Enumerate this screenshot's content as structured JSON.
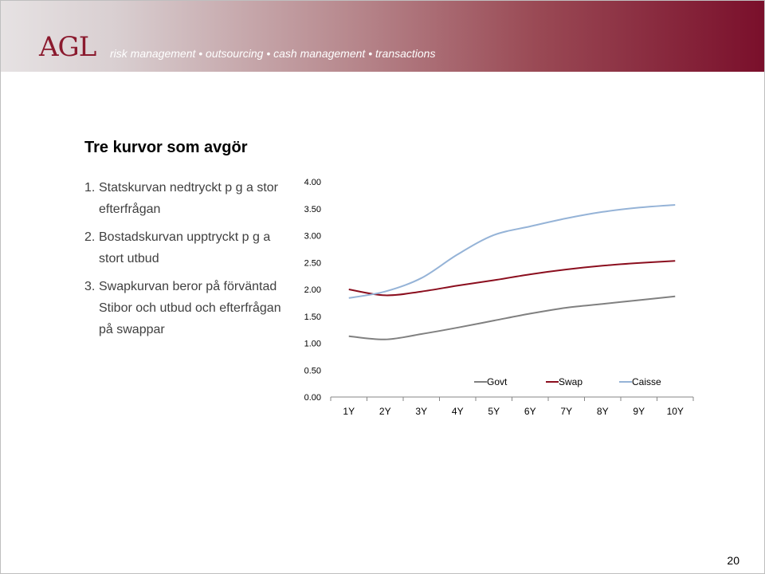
{
  "header": {
    "logo": "AGL",
    "tagline": "risk management • outsourcing • cash management • transactions"
  },
  "slide": {
    "title": "Tre kurvor som avgör",
    "items": [
      {
        "num": "1.",
        "text": "Statskurvan nedtryckt p g a stor efterfrågan"
      },
      {
        "num": "2.",
        "text": "Bostadskurvan upptryckt p g a stort utbud"
      },
      {
        "num": "3.",
        "text": "Swapkurvan beror på förväntad Stibor och utbud och efterfrågan på swappar"
      }
    ],
    "page_number": "20"
  },
  "chart_data": {
    "type": "line",
    "title": "",
    "xlabel": "",
    "ylabel": "",
    "categories": [
      "1Y",
      "2Y",
      "3Y",
      "4Y",
      "5Y",
      "6Y",
      "7Y",
      "8Y",
      "9Y",
      "10Y"
    ],
    "y_ticks": [
      "0.00",
      "0.50",
      "1.00",
      "1.50",
      "2.00",
      "2.50",
      "3.00",
      "3.50",
      "4.00"
    ],
    "ylim": [
      0,
      4
    ],
    "grid": false,
    "legend": "bottom-right",
    "series": [
      {
        "name": "Govt",
        "color": "#808080",
        "values": [
          1.13,
          1.07,
          1.17,
          1.29,
          1.42,
          1.55,
          1.66,
          1.73,
          1.8,
          1.87
        ]
      },
      {
        "name": "Swap",
        "color": "#8b0e1e",
        "values": [
          2.0,
          1.89,
          1.96,
          2.07,
          2.17,
          2.28,
          2.37,
          2.44,
          2.49,
          2.53
        ]
      },
      {
        "name": "Caisse",
        "color": "#95b3d7",
        "values": [
          1.84,
          1.96,
          2.21,
          2.65,
          3.01,
          3.17,
          3.32,
          3.44,
          3.52,
          3.57
        ]
      }
    ]
  }
}
